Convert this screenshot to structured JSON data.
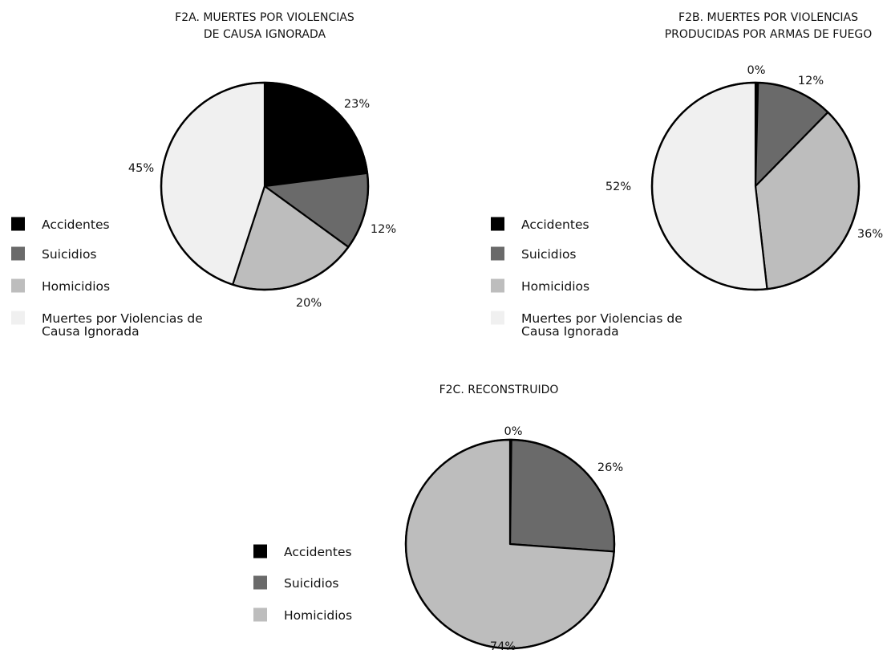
{
  "colors": {
    "Accidentes": "#000000",
    "Suicidios": "#6a6a6a",
    "Homicidios": "#bdbdbd",
    "Muertes por Violencias de Causa Ignorada": "#f0f0f0"
  },
  "chart_data": [
    {
      "id": "f2a",
      "type": "pie",
      "title_lines": [
        "F2A. MUERTES POR VIOLENCIAS",
        "DE CAUSA IGNORADA"
      ],
      "slices": [
        {
          "label": "Accidentes",
          "value": 23,
          "display": "23%"
        },
        {
          "label": "Suicidios",
          "value": 12,
          "display": "12%"
        },
        {
          "label": "Homicidios",
          "value": 20,
          "display": "20%"
        },
        {
          "label": "Muertes por Violencias de Causa Ignorada",
          "value": 45,
          "display": "45%"
        }
      ],
      "legend": [
        {
          "lines": [
            "Accidentes"
          ],
          "color_key": "Accidentes"
        },
        {
          "lines": [
            "Suicidios"
          ],
          "color_key": "Suicidios"
        },
        {
          "lines": [
            "Homicidios"
          ],
          "color_key": "Homicidios"
        },
        {
          "lines": [
            "Muertes por Violencias de",
            "Causa Ignorada"
          ],
          "color_key": "Muertes por Violencias de Causa Ignorada"
        }
      ],
      "legend_position": "left"
    },
    {
      "id": "f2b",
      "type": "pie",
      "title_lines": [
        "F2B. MUERTES POR VIOLENCIAS",
        "PRODUCIDAS POR ARMAS DE FUEGO"
      ],
      "slices": [
        {
          "label": "Accidentes",
          "value": 0.4,
          "display": "0%"
        },
        {
          "label": "Suicidios",
          "value": 12,
          "display": "12%"
        },
        {
          "label": "Homicidios",
          "value": 36,
          "display": "36%"
        },
        {
          "label": "Muertes por Violencias de Causa Ignorada",
          "value": 52,
          "display": "52%"
        }
      ],
      "legend": [
        {
          "lines": [
            "Accidentes"
          ],
          "color_key": "Accidentes"
        },
        {
          "lines": [
            "Suicidios"
          ],
          "color_key": "Suicidios"
        },
        {
          "lines": [
            "Homicidios"
          ],
          "color_key": "Homicidios"
        },
        {
          "lines": [
            "Muertes por Violencias de",
            "Causa Ignorada"
          ],
          "color_key": "Muertes por Violencias de Causa Ignorada"
        }
      ],
      "legend_position": "left"
    },
    {
      "id": "f2c",
      "type": "pie",
      "title_lines": [
        "F2C. RECONSTRUIDO"
      ],
      "slices": [
        {
          "label": "Accidentes",
          "value": 0.2,
          "display": "0%"
        },
        {
          "label": "Suicidios",
          "value": 26,
          "display": "26%"
        },
        {
          "label": "Homicidios",
          "value": 74,
          "display": "74%"
        }
      ],
      "legend": [
        {
          "lines": [
            "Accidentes"
          ],
          "color_key": "Accidentes"
        },
        {
          "lines": [
            "Suicidios"
          ],
          "color_key": "Suicidios"
        },
        {
          "lines": [
            "Homicidios"
          ],
          "color_key": "Homicidios"
        }
      ],
      "legend_position": "left"
    }
  ]
}
